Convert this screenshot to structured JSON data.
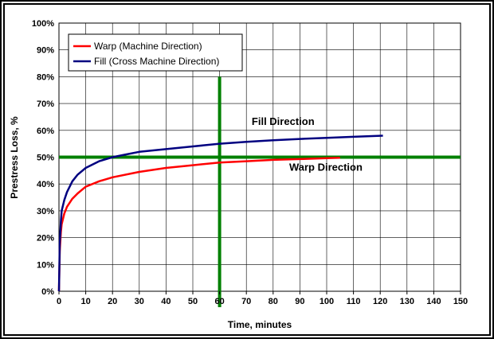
{
  "chart_data": {
    "type": "line",
    "xlabel": "Time, minutes",
    "ylabel": "Prestress Loss, %",
    "xlim": [
      0,
      150
    ],
    "ylim": [
      0,
      100
    ],
    "x_ticks": [
      "0",
      "10",
      "20",
      "30",
      "40",
      "50",
      "60",
      "70",
      "80",
      "90",
      "100",
      "110",
      "120",
      "130",
      "140",
      "150"
    ],
    "y_ticks": [
      "0%",
      "10%",
      "20%",
      "30%",
      "40%",
      "50%",
      "60%",
      "70%",
      "80%",
      "90%",
      "100%"
    ],
    "grid": true,
    "legend_position": "top-left",
    "series": [
      {
        "name": "Warp (Machine Direction)",
        "color": "#ff0000",
        "points": [
          [
            0,
            0
          ],
          [
            0.3,
            15
          ],
          [
            0.7,
            22
          ],
          [
            1,
            25
          ],
          [
            2,
            29
          ],
          [
            3,
            31.5
          ],
          [
            5,
            34.5
          ],
          [
            7,
            36.5
          ],
          [
            10,
            39
          ],
          [
            15,
            41
          ],
          [
            20,
            42.5
          ],
          [
            30,
            44.5
          ],
          [
            40,
            46
          ],
          [
            50,
            47
          ],
          [
            60,
            48
          ],
          [
            70,
            48.5
          ],
          [
            80,
            49
          ],
          [
            90,
            49.3
          ],
          [
            100,
            49.6
          ],
          [
            105,
            49.8
          ]
        ]
      },
      {
        "name": "Fill (Cross Machine Direction)",
        "color": "#000080",
        "points": [
          [
            0,
            0
          ],
          [
            0.3,
            18
          ],
          [
            0.7,
            26
          ],
          [
            1,
            30
          ],
          [
            2,
            34
          ],
          [
            3,
            37
          ],
          [
            5,
            41
          ],
          [
            7,
            43.5
          ],
          [
            10,
            46
          ],
          [
            15,
            48.5
          ],
          [
            20,
            50
          ],
          [
            25,
            51
          ],
          [
            30,
            52
          ],
          [
            40,
            53
          ],
          [
            50,
            54
          ],
          [
            60,
            55
          ],
          [
            70,
            55.7
          ],
          [
            80,
            56.3
          ],
          [
            90,
            56.8
          ],
          [
            100,
            57.2
          ],
          [
            110,
            57.6
          ],
          [
            121,
            58
          ]
        ]
      }
    ],
    "reference_lines": [
      {
        "axis": "y",
        "value": 50,
        "color": "#008000"
      },
      {
        "axis": "x",
        "value": 60,
        "color": "#008000"
      }
    ],
    "annotations": [
      {
        "text": "Fill Direction",
        "x": 72,
        "y": 62
      },
      {
        "text": "Warp Direction",
        "x": 86,
        "y": 45
      }
    ]
  }
}
